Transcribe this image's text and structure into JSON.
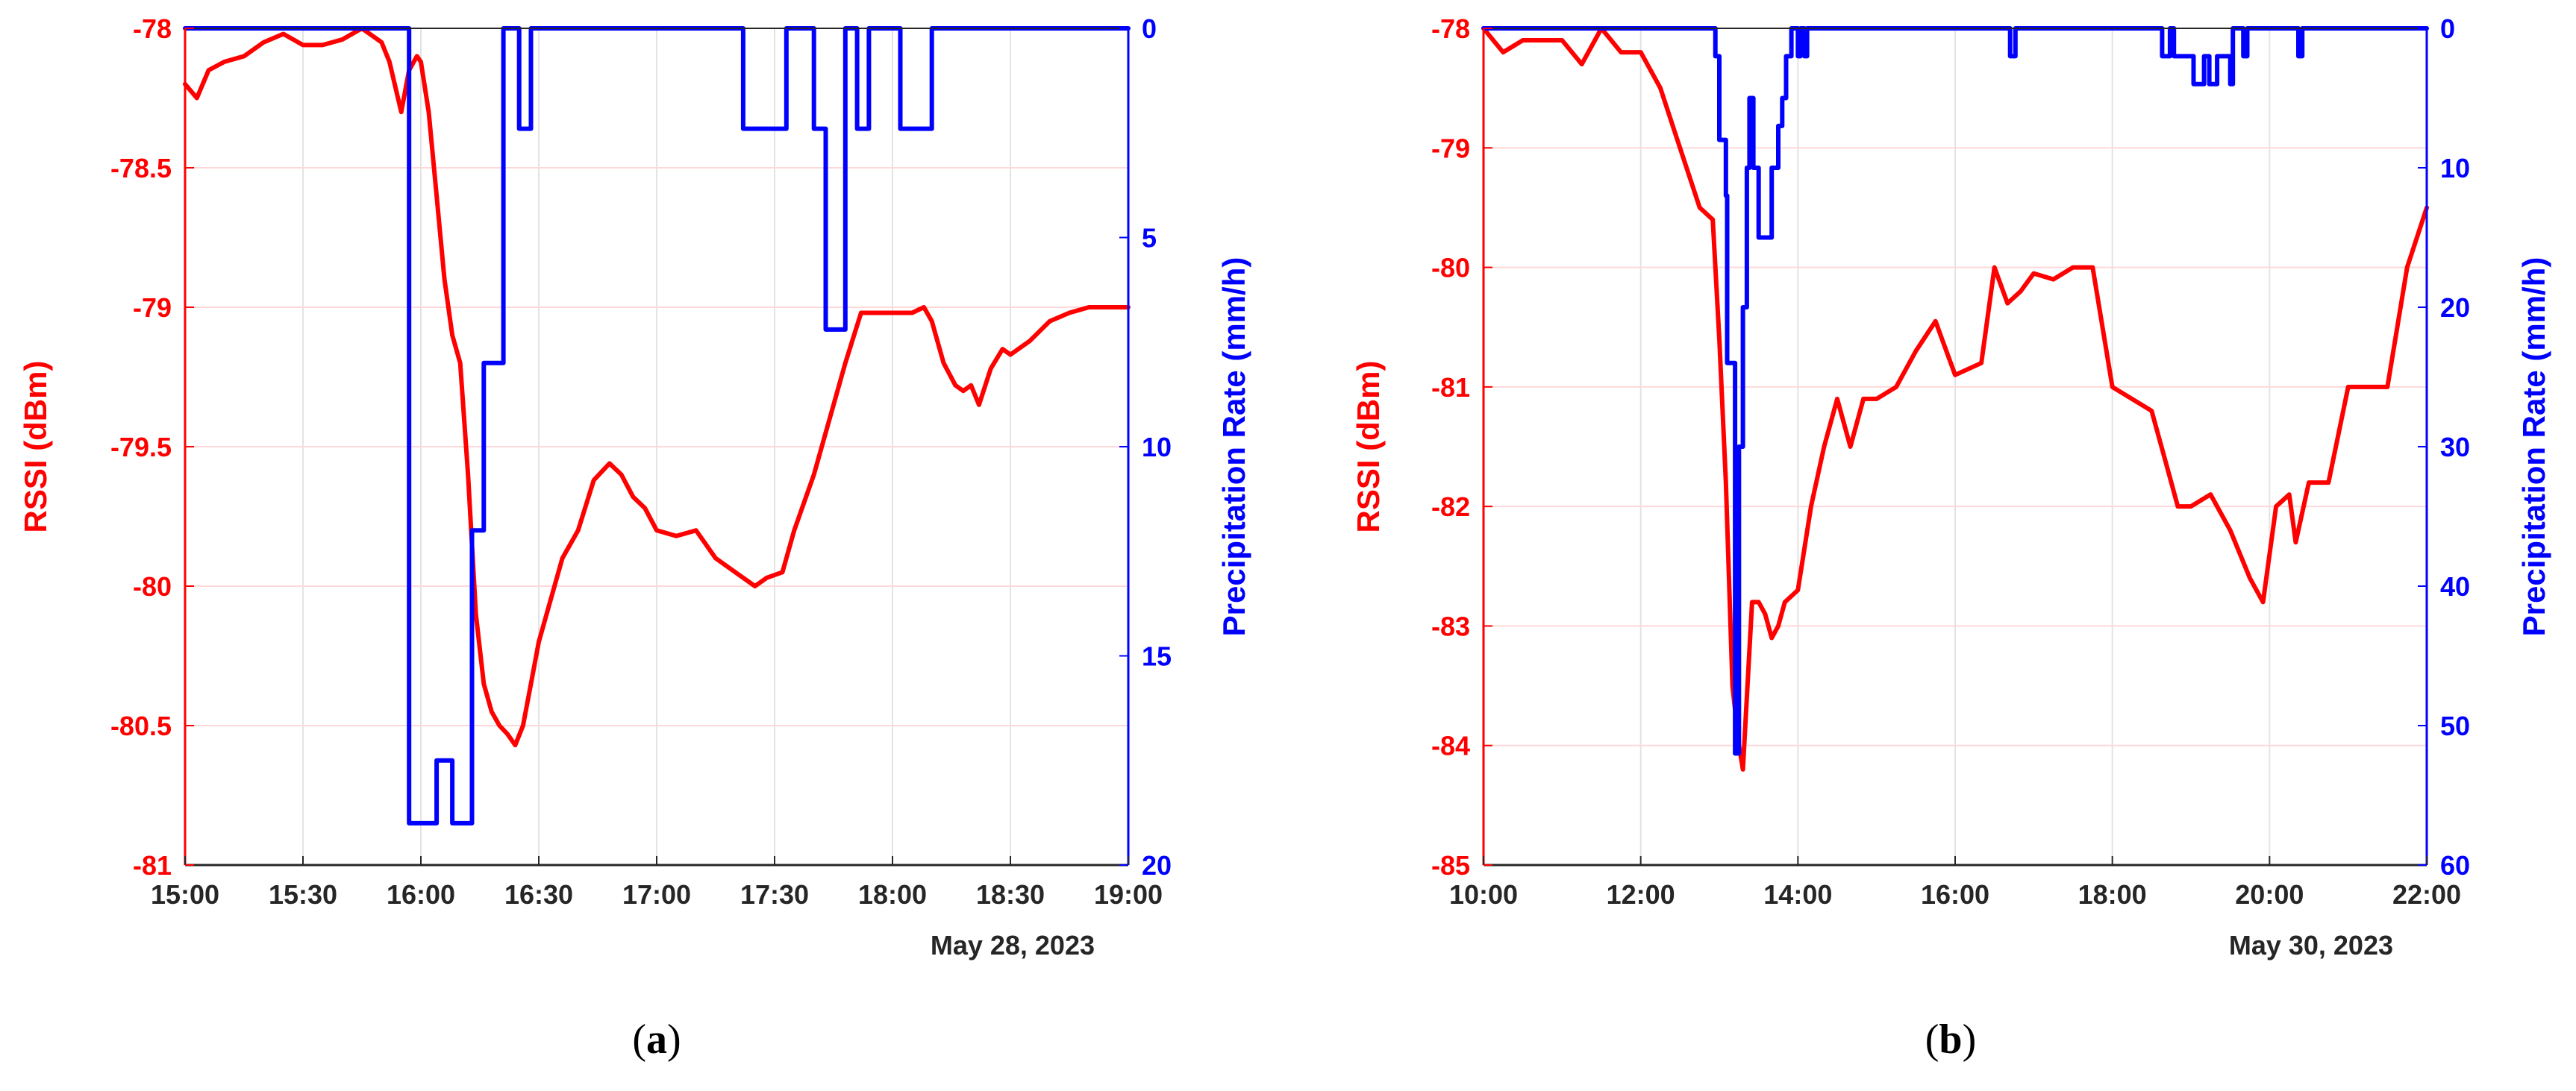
{
  "figure": {
    "colors": {
      "rssi": "#ff0000",
      "precip": "#0000ff",
      "grid_h": "#ffd9d9",
      "grid_v": "#e3e3e3",
      "axis": "#262626"
    }
  },
  "chart_data": [
    {
      "type": "line",
      "panel_label": "a",
      "xlabel": "",
      "x_axis_caption": "May 28, 2023",
      "ylabel": "RSSI (dBm)",
      "y2label": "Precipitation Rate (mm/h)",
      "xlim": [
        "15:00",
        "19:00"
      ],
      "xticks": [
        "15:00",
        "15:30",
        "16:00",
        "16:30",
        "17:00",
        "17:30",
        "18:00",
        "18:30",
        "19:00"
      ],
      "ylim": [
        -81,
        -78
      ],
      "yticks": [
        -81,
        -80.5,
        -80,
        -79.5,
        -79,
        -78.5,
        -78
      ],
      "y2lim": [
        20,
        0
      ],
      "y2ticks": [
        0,
        5,
        10,
        15,
        20
      ],
      "y2_reversed": true,
      "grid": true,
      "series": [
        {
          "name": "RSSI (dBm)",
          "axis": "left",
          "color": "#ff0000",
          "x": [
            "15:00",
            "15:03",
            "15:06",
            "15:10",
            "15:15",
            "15:20",
            "15:25",
            "15:30",
            "15:35",
            "15:40",
            "15:45",
            "15:50",
            "15:52",
            "15:55",
            "15:57",
            "15:59",
            "16:00",
            "16:02",
            "16:04",
            "16:06",
            "16:08",
            "16:10",
            "16:12",
            "16:14",
            "16:16",
            "16:18",
            "16:20",
            "16:22",
            "16:24",
            "16:26",
            "16:28",
            "16:30",
            "16:33",
            "16:36",
            "16:40",
            "16:44",
            "16:48",
            "16:51",
            "16:54",
            "16:57",
            "17:00",
            "17:05",
            "17:10",
            "17:15",
            "17:20",
            "17:25",
            "17:28",
            "17:32",
            "17:35",
            "17:40",
            "17:45",
            "17:48",
            "17:52",
            "17:55",
            "18:00",
            "18:05",
            "18:08",
            "18:10",
            "18:13",
            "18:16",
            "18:18",
            "18:20",
            "18:22",
            "18:25",
            "18:28",
            "18:30",
            "18:35",
            "18:40",
            "18:45",
            "18:50",
            "18:55",
            "19:00"
          ],
          "values": [
            -78.2,
            -78.25,
            -78.15,
            -78.12,
            -78.1,
            -78.05,
            -78.02,
            -78.06,
            -78.06,
            -78.04,
            -78.0,
            -78.05,
            -78.12,
            -78.3,
            -78.15,
            -78.1,
            -78.12,
            -78.3,
            -78.6,
            -78.9,
            -79.1,
            -79.2,
            -79.6,
            -80.1,
            -80.35,
            -80.45,
            -80.5,
            -80.53,
            -80.57,
            -80.5,
            -80.35,
            -80.2,
            -80.05,
            -79.9,
            -79.8,
            -79.62,
            -79.56,
            -79.6,
            -79.68,
            -79.72,
            -79.8,
            -79.82,
            -79.8,
            -79.9,
            -79.95,
            -80.0,
            -79.97,
            -79.95,
            -79.8,
            -79.6,
            -79.35,
            -79.2,
            -79.02,
            -79.02,
            -79.02,
            -79.02,
            -79.0,
            -79.05,
            -79.2,
            -79.28,
            -79.3,
            -79.28,
            -79.35,
            -79.22,
            -79.15,
            -79.17,
            -79.12,
            -79.05,
            -79.02,
            -79.0,
            -79.0,
            -79.0
          ]
        },
        {
          "name": "Precipitation Rate (mm/h)",
          "axis": "right",
          "color": "#0000ff",
          "step": true,
          "x": [
            "15:00",
            "15:56",
            "15:57",
            "16:04",
            "16:08",
            "16:13",
            "16:16",
            "16:21",
            "16:22",
            "16:25",
            "16:28",
            "17:22",
            "17:33",
            "17:40",
            "17:41",
            "17:43",
            "17:48",
            "17:51",
            "17:54",
            "18:00",
            "18:02",
            "18:10",
            "18:15"
          ],
          "values": [
            0,
            0,
            19,
            17.5,
            19,
            12,
            8,
            0,
            0,
            2.4,
            0,
            2.4,
            0,
            2.4,
            2.4,
            7.2,
            0,
            2.4,
            0,
            0,
            2.4,
            0,
            0
          ]
        }
      ]
    },
    {
      "type": "line",
      "panel_label": "b",
      "xlabel": "",
      "x_axis_caption": "May 30, 2023",
      "ylabel": "RSSI (dBm)",
      "y2label": "Precipitation Rate (mm/h)",
      "xlim": [
        "10:00",
        "22:00"
      ],
      "xticks": [
        "10:00",
        "12:00",
        "14:00",
        "16:00",
        "18:00",
        "20:00",
        "22:00"
      ],
      "ylim": [
        -85,
        -78
      ],
      "yticks": [
        -85,
        -84,
        -83,
        -82,
        -81,
        -80,
        -79,
        -78
      ],
      "y2lim": [
        60,
        0
      ],
      "y2ticks": [
        0,
        10,
        20,
        30,
        40,
        50,
        60
      ],
      "y2_reversed": true,
      "grid": true,
      "series": [
        {
          "name": "RSSI (dBm)",
          "axis": "left",
          "color": "#ff0000",
          "x": [
            "10:00",
            "10:15",
            "10:30",
            "10:45",
            "11:00",
            "11:15",
            "11:30",
            "11:45",
            "12:00",
            "12:15",
            "12:30",
            "12:45",
            "12:55",
            "13:00",
            "13:05",
            "13:10",
            "13:15",
            "13:18",
            "13:20",
            "13:25",
            "13:30",
            "13:35",
            "13:40",
            "13:45",
            "13:50",
            "14:00",
            "14:10",
            "14:20",
            "14:30",
            "14:40",
            "14:50",
            "15:00",
            "15:15",
            "15:30",
            "15:45",
            "15:50",
            "16:00",
            "16:20",
            "16:30",
            "16:40",
            "16:50",
            "17:00",
            "17:15",
            "17:30",
            "17:45",
            "18:00",
            "18:15",
            "18:30",
            "18:40",
            "18:50",
            "19:00",
            "19:15",
            "19:30",
            "19:45",
            "19:55",
            "20:05",
            "20:15",
            "20:20",
            "20:30",
            "20:45",
            "21:00",
            "21:15",
            "21:30",
            "21:45",
            "22:00"
          ],
          "values": [
            -78.0,
            -78.2,
            -78.1,
            -78.1,
            -78.1,
            -78.3,
            -78.0,
            -78.2,
            -78.2,
            -78.5,
            -79.0,
            -79.5,
            -79.6,
            -80.6,
            -81.8,
            -83.5,
            -84.0,
            -84.2,
            -83.8,
            -82.8,
            -82.8,
            -82.9,
            -83.1,
            -83.0,
            -82.8,
            -82.7,
            -82.0,
            -81.5,
            -81.1,
            -81.5,
            -81.1,
            -81.1,
            -81.0,
            -80.7,
            -80.45,
            -80.6,
            -80.9,
            -80.8,
            -80.0,
            -80.3,
            -80.2,
            -80.05,
            -80.1,
            -80.0,
            -80.0,
            -81.0,
            -81.1,
            -81.2,
            -81.6,
            -82.0,
            -82.0,
            -81.9,
            -82.2,
            -82.6,
            -82.8,
            -82.0,
            -81.9,
            -82.3,
            -81.8,
            -81.8,
            -81.0,
            -81.0,
            -81.0,
            -80.0,
            -79.5
          ]
        },
        {
          "name": "Precipitation Rate (mm/h)",
          "axis": "right",
          "color": "#0000ff",
          "step": true,
          "x": [
            "10:00",
            "12:57",
            "13:00",
            "13:05",
            "13:06",
            "13:12",
            "13:15",
            "13:18",
            "13:21",
            "13:23",
            "13:26",
            "13:30",
            "13:33",
            "13:40",
            "13:45",
            "13:48",
            "13:51",
            "13:55",
            "14:00",
            "14:02",
            "14:05",
            "14:07",
            "16:40",
            "16:42",
            "16:46",
            "18:35",
            "18:38",
            "18:41",
            "18:44",
            "18:47",
            "19:00",
            "19:02",
            "19:10",
            "19:14",
            "19:20",
            "19:30",
            "19:32",
            "19:40",
            "19:43",
            "20:20",
            "20:22",
            "20:25"
          ],
          "values": [
            0,
            2,
            8,
            12,
            24,
            52,
            30,
            20,
            10,
            5,
            10,
            15,
            15,
            10,
            7,
            5,
            2,
            0,
            2,
            0,
            2,
            0,
            0,
            2,
            0,
            0,
            2,
            2,
            0,
            2,
            2,
            4,
            2,
            4,
            2,
            4,
            0,
            2,
            0,
            0,
            2,
            0
          ]
        }
      ]
    }
  ]
}
